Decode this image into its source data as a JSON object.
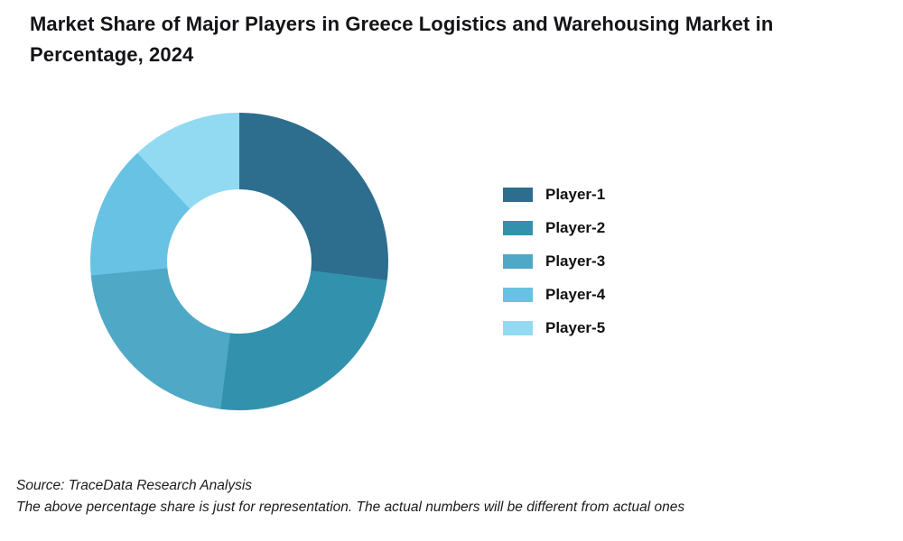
{
  "title": "Market Share of Major Players in Greece Logistics and Warehousing Market in Percentage, 2024",
  "chart_data": {
    "type": "pie",
    "subtype": "donut",
    "title": "Market Share of Major Players in Greece Logistics and Warehousing Market in Percentage, 2024",
    "categories": [
      "Player-1",
      "Player-2",
      "Player-3",
      "Player-4",
      "Player-5"
    ],
    "values": [
      27,
      25,
      21.5,
      14.5,
      12
    ],
    "unit": "percent",
    "colors": [
      "#2D6E8E",
      "#3292AE",
      "#4FA8C6",
      "#67C2E4",
      "#92DAF2"
    ],
    "start_angle_deg": 0,
    "direction": "clockwise",
    "inner_radius_ratio": 0.485,
    "legend_position": "right",
    "slice_labels_shown": false,
    "background": "#FFFFFF"
  },
  "footer": {
    "source": "Source: TraceData Research Analysis",
    "disclaimer": "The above percentage share is just for representation. The actual numbers will be different from actual ones"
  }
}
